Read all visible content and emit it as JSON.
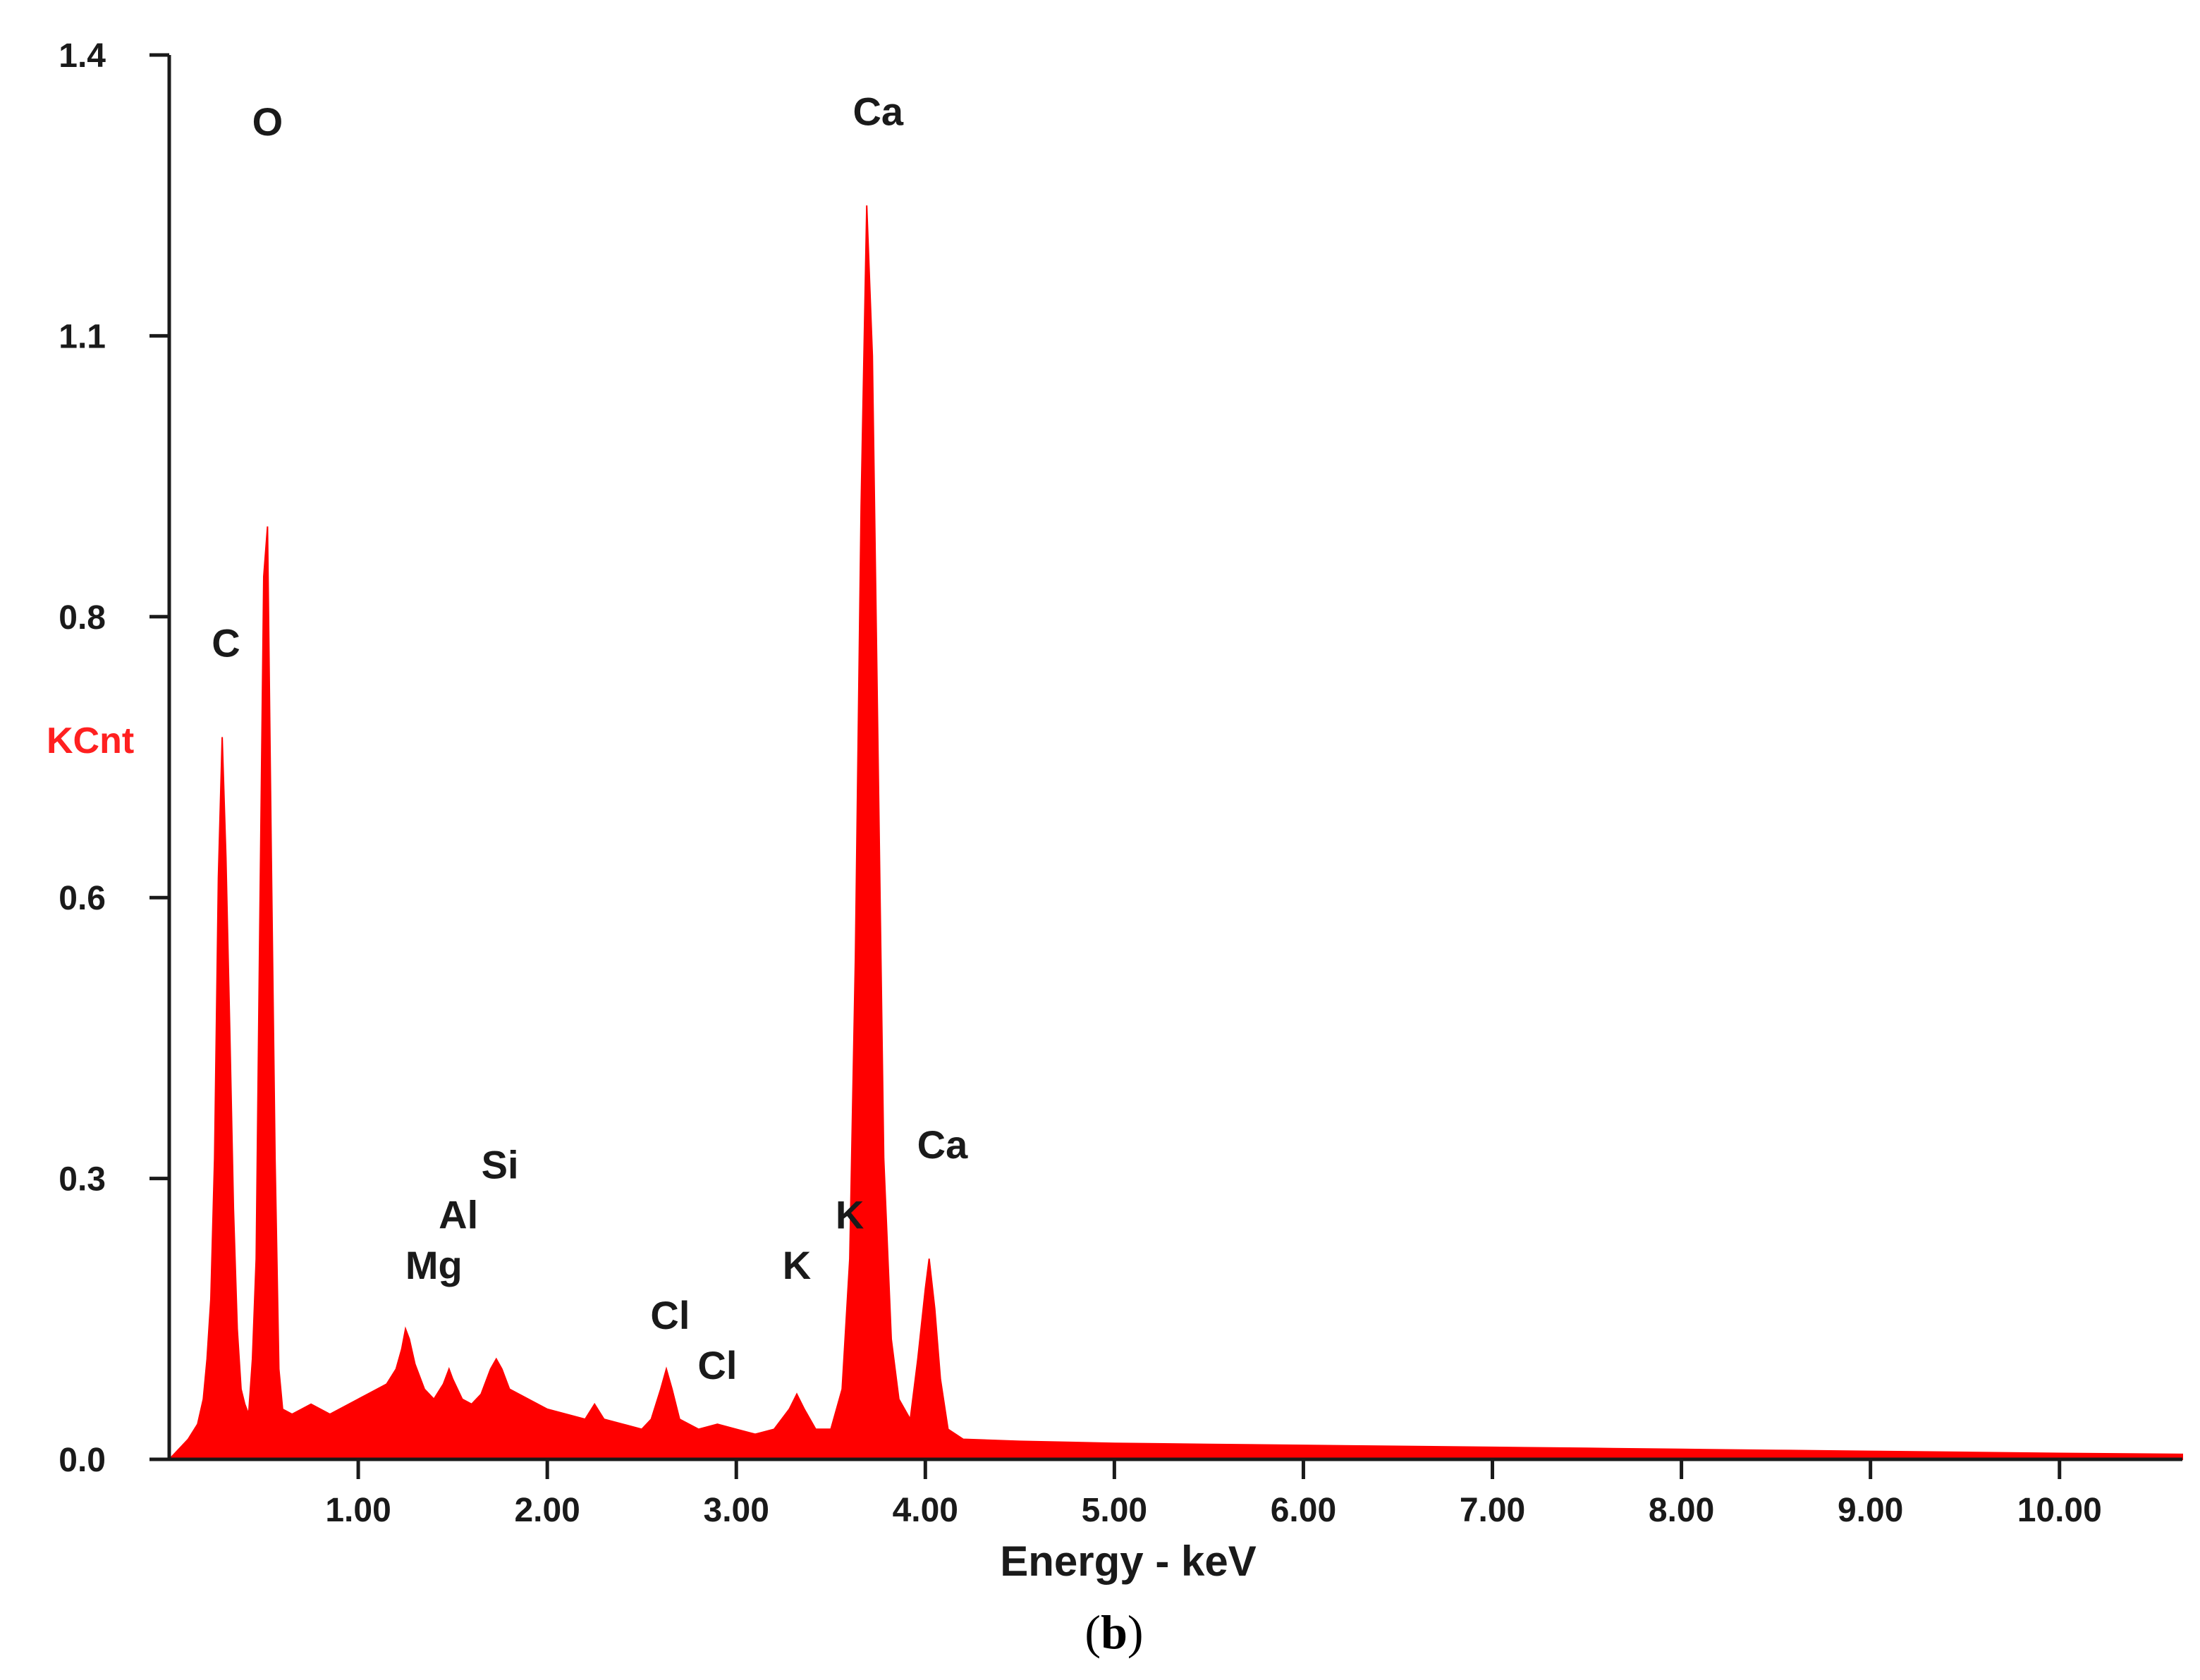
{
  "colors": {
    "spectrum": "#ff0000",
    "axis": "#1a1a1a",
    "ylabel": "#ff2020",
    "text": "#1a1a1a"
  },
  "caption": {
    "prefix": "(",
    "letter": "b",
    "suffix": ")"
  },
  "chart_data": {
    "type": "area",
    "title": "",
    "xlabel": "Energy - keV",
    "ylabel": "KCnt",
    "xlim": [
      0.0,
      10.65
    ],
    "ylim": [
      0.0,
      1.4
    ],
    "grid": false,
    "x_ticks": [
      {
        "value": 1.0,
        "label": "1.00"
      },
      {
        "value": 2.0,
        "label": "2.00"
      },
      {
        "value": 3.0,
        "label": "3.00"
      },
      {
        "value": 4.0,
        "label": "4.00"
      },
      {
        "value": 5.0,
        "label": "5.00"
      },
      {
        "value": 6.0,
        "label": "6.00"
      },
      {
        "value": 7.0,
        "label": "7.00"
      },
      {
        "value": 8.0,
        "label": "8.00"
      },
      {
        "value": 9.0,
        "label": "9.00"
      },
      {
        "value": 10.0,
        "label": "10.00"
      }
    ],
    "y_ticks": [
      {
        "value": 0.0,
        "label": "0.0"
      },
      {
        "value": 0.28,
        "label": "0.3"
      },
      {
        "value": 0.56,
        "label": "0.6"
      },
      {
        "value": 0.84,
        "label": "0.8"
      },
      {
        "value": 1.12,
        "label": "1.1"
      },
      {
        "value": 1.4,
        "label": "1.4"
      }
    ],
    "series": [
      {
        "points": [
          [
            0.0,
            0.0
          ],
          [
            0.05,
            0.01
          ],
          [
            0.1,
            0.02
          ],
          [
            0.15,
            0.035
          ],
          [
            0.18,
            0.06
          ],
          [
            0.2,
            0.1
          ],
          [
            0.22,
            0.16
          ],
          [
            0.24,
            0.3
          ],
          [
            0.26,
            0.58
          ],
          [
            0.28,
            0.72
          ],
          [
            0.3,
            0.6
          ],
          [
            0.32,
            0.43
          ],
          [
            0.34,
            0.25
          ],
          [
            0.36,
            0.13
          ],
          [
            0.38,
            0.07
          ],
          [
            0.4,
            0.055
          ],
          [
            0.42,
            0.045
          ],
          [
            0.44,
            0.1
          ],
          [
            0.46,
            0.2
          ],
          [
            0.48,
            0.55
          ],
          [
            0.5,
            0.88
          ],
          [
            0.52,
            0.93
          ],
          [
            0.54,
            0.6
          ],
          [
            0.56,
            0.3
          ],
          [
            0.58,
            0.09
          ],
          [
            0.6,
            0.05
          ],
          [
            0.65,
            0.045
          ],
          [
            0.7,
            0.05
          ],
          [
            0.75,
            0.055
          ],
          [
            0.8,
            0.05
          ],
          [
            0.85,
            0.045
          ],
          [
            0.9,
            0.05
          ],
          [
            0.95,
            0.055
          ],
          [
            1.0,
            0.06
          ],
          [
            1.05,
            0.065
          ],
          [
            1.1,
            0.07
          ],
          [
            1.15,
            0.075
          ],
          [
            1.2,
            0.09
          ],
          [
            1.23,
            0.11
          ],
          [
            1.25,
            0.13
          ],
          [
            1.27,
            0.12
          ],
          [
            1.3,
            0.095
          ],
          [
            1.35,
            0.07
          ],
          [
            1.4,
            0.06
          ],
          [
            1.45,
            0.075
          ],
          [
            1.48,
            0.09
          ],
          [
            1.5,
            0.08
          ],
          [
            1.55,
            0.06
          ],
          [
            1.6,
            0.055
          ],
          [
            1.65,
            0.065
          ],
          [
            1.7,
            0.09
          ],
          [
            1.73,
            0.1
          ],
          [
            1.76,
            0.09
          ],
          [
            1.8,
            0.07
          ],
          [
            1.85,
            0.065
          ],
          [
            1.9,
            0.06
          ],
          [
            1.95,
            0.055
          ],
          [
            2.0,
            0.05
          ],
          [
            2.1,
            0.045
          ],
          [
            2.2,
            0.04
          ],
          [
            2.25,
            0.055
          ],
          [
            2.3,
            0.04
          ],
          [
            2.4,
            0.035
          ],
          [
            2.5,
            0.03
          ],
          [
            2.55,
            0.04
          ],
          [
            2.6,
            0.07
          ],
          [
            2.63,
            0.09
          ],
          [
            2.66,
            0.07
          ],
          [
            2.7,
            0.04
          ],
          [
            2.8,
            0.03
          ],
          [
            2.9,
            0.035
          ],
          [
            3.0,
            0.03
          ],
          [
            3.1,
            0.025
          ],
          [
            3.2,
            0.03
          ],
          [
            3.28,
            0.05
          ],
          [
            3.32,
            0.065
          ],
          [
            3.36,
            0.05
          ],
          [
            3.42,
            0.03
          ],
          [
            3.5,
            0.03
          ],
          [
            3.56,
            0.07
          ],
          [
            3.6,
            0.2
          ],
          [
            3.63,
            0.5
          ],
          [
            3.66,
            0.95
          ],
          [
            3.69,
            1.25
          ],
          [
            3.72,
            1.1
          ],
          [
            3.75,
            0.7
          ],
          [
            3.78,
            0.3
          ],
          [
            3.82,
            0.12
          ],
          [
            3.86,
            0.06
          ],
          [
            3.92,
            0.04
          ],
          [
            3.96,
            0.1
          ],
          [
            4.0,
            0.17
          ],
          [
            4.02,
            0.2
          ],
          [
            4.05,
            0.15
          ],
          [
            4.08,
            0.08
          ],
          [
            4.12,
            0.03
          ],
          [
            4.2,
            0.02
          ],
          [
            4.5,
            0.018
          ],
          [
            5.0,
            0.016
          ],
          [
            5.5,
            0.015
          ],
          [
            6.0,
            0.014
          ],
          [
            6.5,
            0.013
          ],
          [
            7.0,
            0.012
          ],
          [
            7.5,
            0.011
          ],
          [
            8.0,
            0.01
          ],
          [
            8.5,
            0.009
          ],
          [
            9.0,
            0.008
          ],
          [
            9.5,
            0.007
          ],
          [
            10.0,
            0.006
          ],
          [
            10.65,
            0.005
          ]
        ]
      }
    ],
    "annotations": [
      {
        "text": "O",
        "x": 0.52,
        "y": 1.32
      },
      {
        "text": "C",
        "x": 0.3,
        "y": 0.8
      },
      {
        "text": "Ca",
        "x": 3.75,
        "y": 1.33
      },
      {
        "text": "Ca",
        "x": 4.09,
        "y": 0.3
      },
      {
        "text": "Si",
        "x": 1.75,
        "y": 0.28
      },
      {
        "text": "Al",
        "x": 1.53,
        "y": 0.23
      },
      {
        "text": "Mg",
        "x": 1.4,
        "y": 0.18
      },
      {
        "text": "Cl",
        "x": 2.65,
        "y": 0.13
      },
      {
        "text": "Cl",
        "x": 2.9,
        "y": 0.08
      },
      {
        "text": "K",
        "x": 3.32,
        "y": 0.18
      },
      {
        "text": "K",
        "x": 3.6,
        "y": 0.23
      }
    ]
  }
}
